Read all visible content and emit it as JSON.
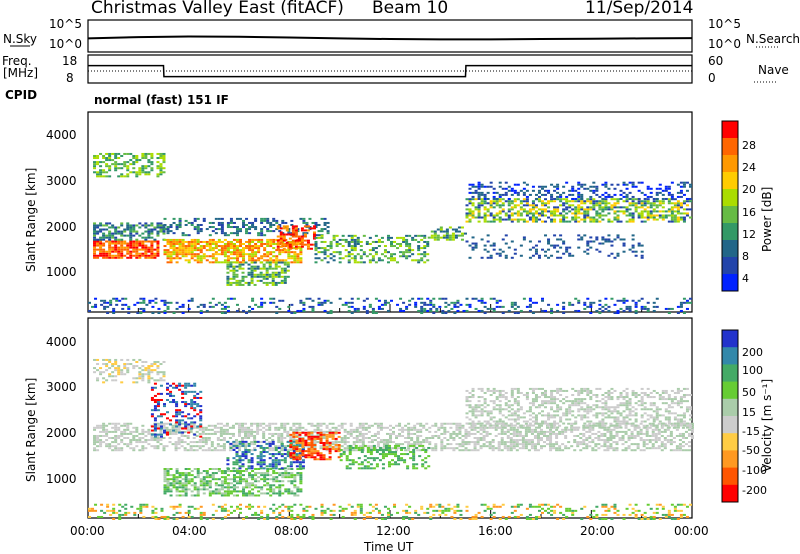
{
  "header": {
    "title": "Christmas Valley East (fitACF)",
    "beam": "Beam 10",
    "date": "11/Sep/2014"
  },
  "sky_panel": {
    "left_label": "N.Sky",
    "left_ticks": [
      "10^5",
      "10^0"
    ],
    "right_label": "N.Search",
    "right_ticks": [
      "10^5",
      "10^0"
    ]
  },
  "freq_panel": {
    "left_label_1": "Freq.",
    "left_label_2": "[MHz]",
    "left_ticks": [
      "18",
      "8"
    ],
    "right_label": "Nave",
    "right_ticks": [
      "60",
      "0"
    ]
  },
  "cpid": {
    "label": "CPID",
    "value": "normal (fast) 151 IF"
  },
  "power_panel": {
    "ylabel": "Slant Range [km]",
    "yticks": [
      "4000",
      "3000",
      "2000",
      "1000"
    ],
    "colorbar_label": "Power [dB]",
    "colorbar_ticks": [
      "28",
      "24",
      "20",
      "16",
      "12",
      "8",
      "4"
    ],
    "colors": [
      "#ff0000",
      "#ff6600",
      "#ff9900",
      "#ffcc00",
      "#aadd00",
      "#66bb44",
      "#339966",
      "#226688",
      "#2244aa",
      "#0022ff"
    ]
  },
  "velocity_panel": {
    "ylabel": "Slant Range [km]",
    "yticks": [
      "4000",
      "3000",
      "2000",
      "1000"
    ],
    "colorbar_label": "Velocity [m s⁻¹]",
    "colorbar_ticks": [
      "200",
      "100",
      "50",
      "15",
      "-15",
      "-50",
      "-100",
      "-200"
    ],
    "colors": [
      "#2233cc",
      "#3388aa",
      "#44aa66",
      "#66cc33",
      "#aaccaa",
      "#cccccc",
      "#ffcc44",
      "#ff9922",
      "#ff5500",
      "#ff0000"
    ]
  },
  "x_axis": {
    "label": "Time UT",
    "ticks": [
      "00:00",
      "04:00",
      "08:00",
      "12:00",
      "16:00",
      "20:00",
      "00:00"
    ]
  },
  "chart_data": [
    {
      "type": "line",
      "title": "N.Sky / N.Search",
      "x": [
        "00:00",
        "02:00",
        "04:00",
        "06:00",
        "08:00",
        "10:00",
        "12:00",
        "14:00",
        "16:00",
        "18:00",
        "20:00",
        "22:00",
        "24:00"
      ],
      "series": [
        {
          "name": "N.Sky",
          "values": [
            3,
            3.4,
            3.6,
            3.5,
            3.3,
            3.0,
            2.8,
            2.7,
            2.7,
            2.8,
            2.9,
            3.0,
            3.1
          ]
        }
      ]
    },
    {
      "type": "line",
      "title": "Freq.",
      "ylabel": "[MHz]",
      "x": [
        "00:00",
        "03:00",
        "03:01",
        "15:00",
        "15:01",
        "24:00"
      ],
      "series": [
        {
          "name": "Freq.",
          "values": [
            15,
            15,
            10,
            10,
            15,
            15
          ]
        }
      ],
      "ylim": [
        8,
        18
      ]
    },
    {
      "type": "heatmap",
      "title": "Power [dB]",
      "xlabel": "Time UT",
      "ylabel": "Slant Range [km]",
      "xlim": [
        "00:00",
        "24:00"
      ],
      "ylim": [
        180,
        4600
      ],
      "value_range": [
        0,
        30
      ]
    },
    {
      "type": "heatmap",
      "title": "Velocity [m s⁻¹]",
      "xlabel": "Time UT",
      "ylabel": "Slant Range [km]",
      "xlim": [
        "00:00",
        "24:00"
      ],
      "ylim": [
        180,
        4600
      ],
      "value_range": [
        -200,
        200
      ]
    }
  ]
}
